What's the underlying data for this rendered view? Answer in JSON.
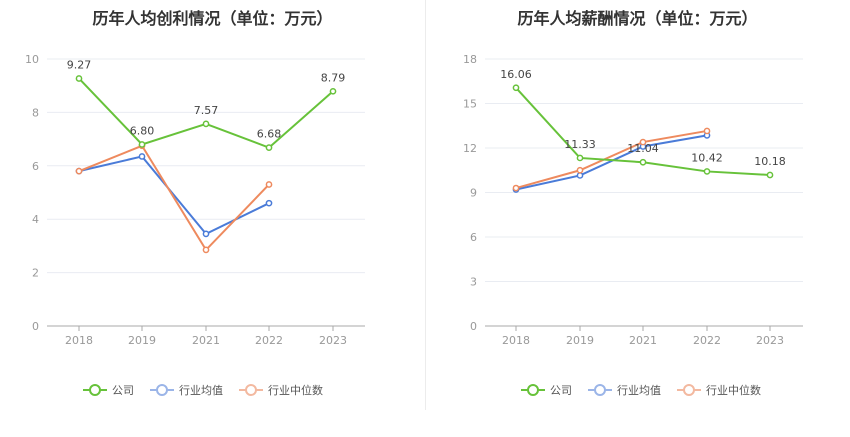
{
  "chart_data": [
    {
      "type": "line",
      "title": "历年人均创利情况（单位：万元）",
      "categories": [
        "2018",
        "2019",
        "2021",
        "2022",
        "2023"
      ],
      "ylim": [
        0,
        10
      ],
      "yticks": [
        0,
        2,
        4,
        6,
        8,
        10
      ],
      "grid": true,
      "legend_position": "bottom",
      "series": [
        {
          "name": "公司",
          "color": "#67c23a",
          "values": [
            9.27,
            6.8,
            7.57,
            6.68,
            8.79
          ],
          "labels": [
            "9.27",
            "6.80",
            "7.57",
            "6.68",
            "8.79"
          ]
        },
        {
          "name": "行业均值",
          "color": "#4a7bd8",
          "values": [
            5.8,
            6.35,
            3.45,
            4.6,
            null
          ],
          "labels": []
        },
        {
          "name": "行业中位数",
          "color": "#ee8a5e",
          "values": [
            5.8,
            6.75,
            2.85,
            5.3,
            null
          ],
          "labels": []
        }
      ]
    },
    {
      "type": "line",
      "title": "历年人均薪酬情况（单位：万元）",
      "categories": [
        "2018",
        "2019",
        "2021",
        "2022",
        "2023"
      ],
      "ylim": [
        0,
        18
      ],
      "yticks": [
        0,
        3,
        6,
        9,
        12,
        15,
        18
      ],
      "grid": true,
      "legend_position": "bottom",
      "series": [
        {
          "name": "公司",
          "color": "#67c23a",
          "values": [
            16.06,
            11.33,
            11.04,
            10.42,
            10.18
          ],
          "labels": [
            "16.06",
            "11.33",
            "11.04",
            "10.42",
            "10.18"
          ]
        },
        {
          "name": "行业均值",
          "color": "#4a7bd8",
          "values": [
            9.2,
            10.15,
            12.1,
            12.85,
            null
          ],
          "labels": []
        },
        {
          "name": "行业中位数",
          "color": "#ee8a5e",
          "values": [
            9.3,
            10.5,
            12.4,
            13.15,
            null
          ],
          "labels": []
        }
      ]
    }
  ]
}
